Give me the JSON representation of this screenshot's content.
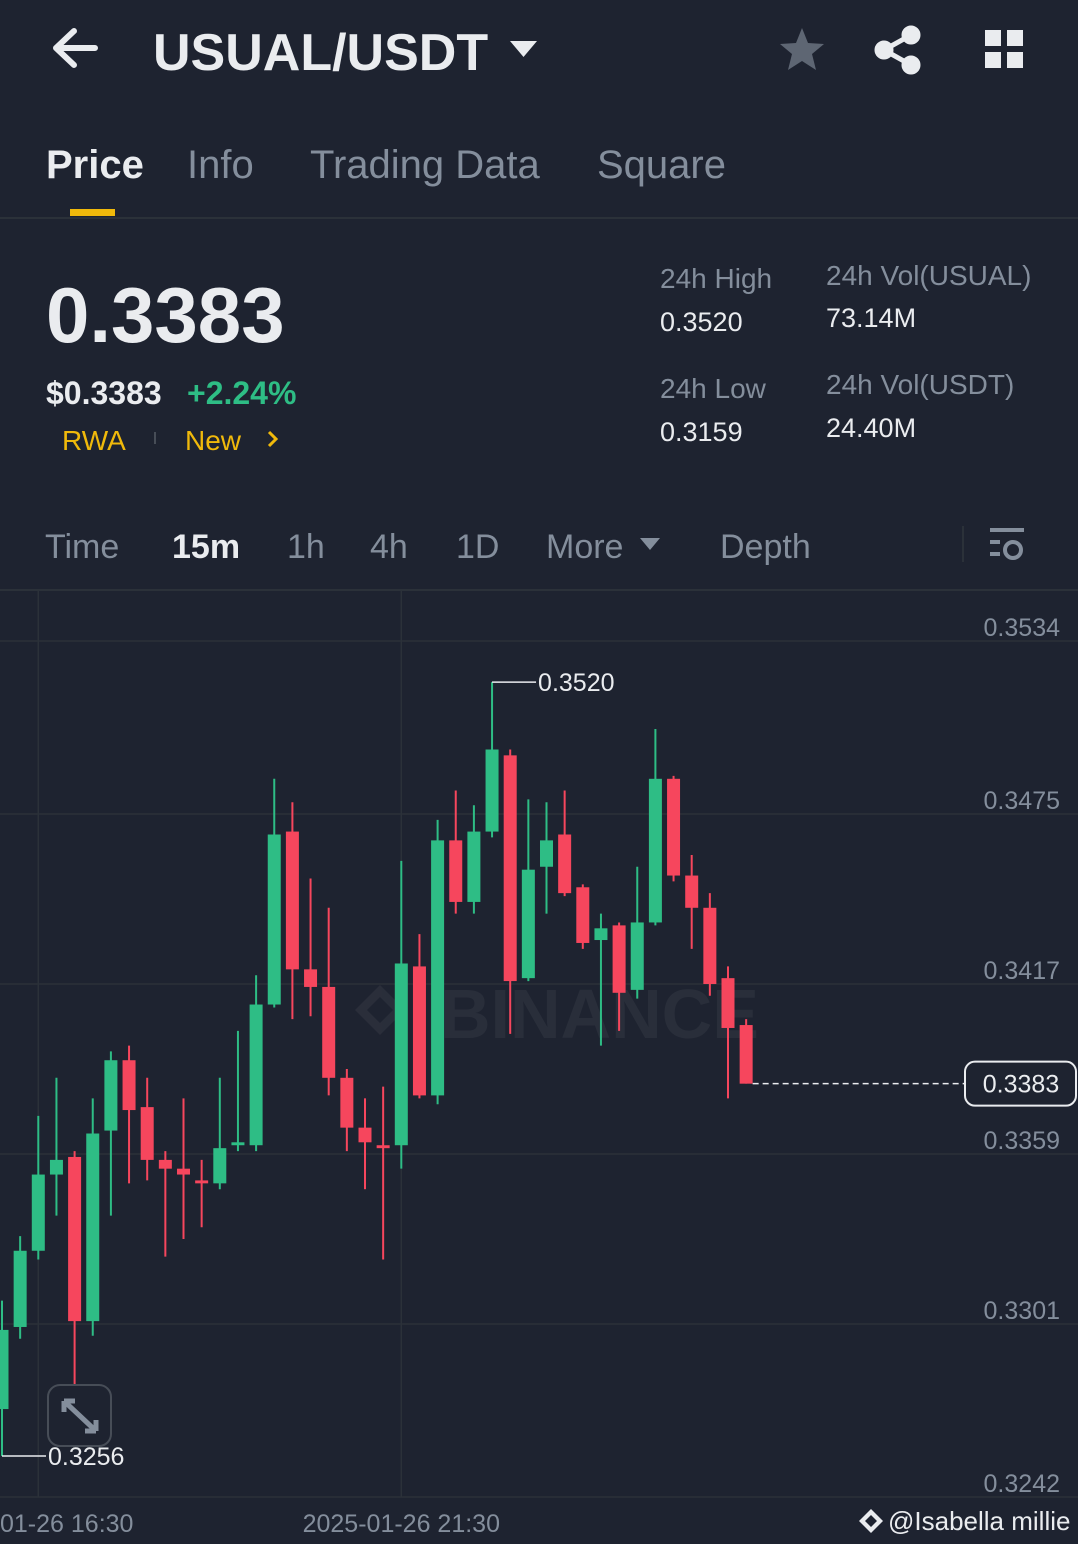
{
  "header": {
    "title": "USUAL/USDT"
  },
  "tabs": [
    "Price",
    "Info",
    "Trading Data",
    "Square"
  ],
  "ticker": {
    "price": "0.3383",
    "price_usd": "$0.3383",
    "change": "+2.24%",
    "tags": [
      "RWA",
      "New"
    ]
  },
  "stats": [
    {
      "label": "24h High",
      "value": "0.3520"
    },
    {
      "label": "24h Vol(USUAL)",
      "value": "73.14M"
    },
    {
      "label": "24h Low",
      "value": "0.3159"
    },
    {
      "label": "24h Vol(USDT)",
      "value": "24.40M"
    }
  ],
  "intervals": [
    "Time",
    "15m",
    "1h",
    "4h",
    "1D",
    "More",
    "Depth"
  ],
  "watermark": "BINANCE",
  "credit": "@Isabella millie",
  "chart_data": {
    "type": "candlestick",
    "categories": [
      null,
      null,
      "01-26 16:30",
      null,
      null,
      null,
      null,
      null,
      null,
      null,
      null,
      null,
      null,
      null,
      null,
      null,
      null,
      null,
      null,
      null,
      null,
      null,
      "2025-01-26 21:30",
      null,
      null,
      null,
      null,
      null,
      null,
      null,
      null,
      null,
      null,
      null,
      null,
      null,
      null,
      null,
      null,
      null,
      null,
      null
    ],
    "open": [
      0.3272,
      0.33,
      0.3326,
      0.3352,
      0.3358,
      0.3302,
      0.3367,
      0.3391,
      0.3375,
      0.3357,
      0.3354,
      0.335,
      0.3349,
      0.3362,
      0.3362,
      0.341,
      0.3469,
      0.3422,
      0.3416,
      0.3385,
      0.3368,
      0.3362,
      0.3362,
      0.3423,
      0.3379,
      0.3466,
      0.3445,
      0.3469,
      0.3495,
      0.3419,
      0.3457,
      0.3468,
      0.345,
      0.3432,
      0.3437,
      0.3415,
      0.3438,
      0.3487,
      0.3454,
      0.3443,
      0.3419,
      0.3403
    ],
    "high": [
      0.3309,
      0.3331,
      0.3372,
      0.3385,
      0.336,
      0.3378,
      0.3394,
      0.3396,
      0.3385,
      0.336,
      0.3378,
      0.3357,
      0.3385,
      0.3401,
      0.342,
      0.3487,
      0.3479,
      0.3453,
      0.3443,
      0.3388,
      0.3378,
      0.3382,
      0.3459,
      0.3434,
      0.3473,
      0.3483,
      0.3478,
      0.352,
      0.3497,
      0.348,
      0.3479,
      0.3483,
      0.3451,
      0.3441,
      0.3438,
      0.3457,
      0.3504,
      0.3488,
      0.3461,
      0.3448,
      0.3423,
      0.3405
    ],
    "low": [
      0.3256,
      0.3296,
      0.3323,
      0.3338,
      0.328,
      0.3297,
      0.3338,
      0.3349,
      0.335,
      0.3324,
      0.333,
      0.3334,
      0.3347,
      0.336,
      0.336,
      0.3409,
      0.3405,
      0.3406,
      0.3379,
      0.336,
      0.3347,
      0.3323,
      0.3354,
      0.3378,
      0.3376,
      0.3441,
      0.3441,
      0.3467,
      0.34,
      0.3418,
      0.3441,
      0.3447,
      0.3429,
      0.3396,
      0.3401,
      0.3412,
      0.3437,
      0.3452,
      0.3429,
      0.3413,
      0.3378,
      0.3383
    ],
    "close": [
      0.3299,
      0.3326,
      0.3352,
      0.3357,
      0.3302,
      0.3366,
      0.3391,
      0.3374,
      0.3357,
      0.3354,
      0.3352,
      0.3349,
      0.3361,
      0.3363,
      0.341,
      0.3468,
      0.3422,
      0.3416,
      0.3385,
      0.3368,
      0.3363,
      0.3361,
      0.3424,
      0.3379,
      0.3466,
      0.3445,
      0.3469,
      0.3497,
      0.3418,
      0.3456,
      0.3466,
      0.3448,
      0.3431,
      0.3436,
      0.3414,
      0.3438,
      0.3487,
      0.3454,
      0.3443,
      0.3417,
      0.3402,
      0.3383
    ],
    "up_color": "#2ebd85",
    "down_color": "#f6465d",
    "ylim": [
      0.3242,
      0.3551
    ],
    "yticks": [
      0.3534,
      0.3475,
      0.3417,
      0.3359,
      0.3301,
      0.3242
    ],
    "grid": true,
    "high_mark": {
      "value": 0.352,
      "label": "0.3520"
    },
    "low_mark": {
      "value": 0.3256,
      "label": "0.3256"
    },
    "last_price": 0.3383
  }
}
